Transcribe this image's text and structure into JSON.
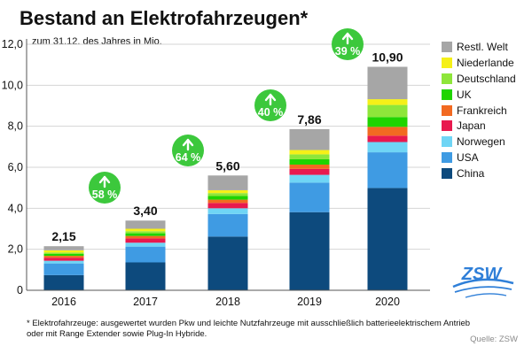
{
  "chart_data": {
    "type": "bar",
    "stacked": true,
    "title": "Bestand an Elektrofahrzeugen*",
    "subtitle": "zum 31.12. des Jahres in Mio.",
    "categories": [
      "2016",
      "2017",
      "2018",
      "2019",
      "2020"
    ],
    "ylim": [
      0,
      12
    ],
    "yticks": [
      "0",
      "2,0",
      "4,0",
      "6,0",
      "8,0",
      "10,0",
      "12,0"
    ],
    "grid": true,
    "legend_position": "right",
    "series": [
      {
        "name": "China",
        "color": "#0d4a7d",
        "values": [
          0.74,
          1.36,
          2.62,
          3.81,
          4.99
        ]
      },
      {
        "name": "USA",
        "color": "#3f9be3",
        "values": [
          0.57,
          0.77,
          1.1,
          1.44,
          1.74
        ]
      },
      {
        "name": "Norwegen",
        "color": "#6fd5f5",
        "values": [
          0.13,
          0.19,
          0.28,
          0.38,
          0.5
        ]
      },
      {
        "name": "Japan",
        "color": "#e8194e",
        "values": [
          0.15,
          0.21,
          0.26,
          0.29,
          0.31
        ]
      },
      {
        "name": "Frankreich",
        "color": "#f26a21",
        "values": [
          0.09,
          0.12,
          0.16,
          0.21,
          0.43
        ]
      },
      {
        "name": "UK",
        "color": "#1fd400",
        "values": [
          0.09,
          0.13,
          0.18,
          0.26,
          0.48
        ]
      },
      {
        "name": "Deutschland",
        "color": "#8ee63a",
        "values": [
          0.07,
          0.1,
          0.14,
          0.24,
          0.59
        ]
      },
      {
        "name": "Niederlande",
        "color": "#f5f018",
        "values": [
          0.11,
          0.12,
          0.14,
          0.21,
          0.28
        ]
      },
      {
        "name": "Restl. Welt",
        "color": "#a6a6a6",
        "values": [
          0.2,
          0.4,
          0.72,
          1.02,
          1.58
        ]
      }
    ],
    "totals_labels": [
      "2,15",
      "3,40",
      "5,60",
      "7,86",
      "10,90"
    ],
    "growth_labels": [
      "58 %",
      "64 %",
      "40 %",
      "39 %"
    ],
    "growth_color": "#3cc83c"
  },
  "footnote": "* Elektrofahrzeuge: ausgewertet wurden Pkw und leichte Nutzfahrzeuge mit ausschließlich batterieelektrischem Antrieb oder mit Range Extender sowie Plug-In Hybride.",
  "source": "Quelle: ZSW",
  "logo": {
    "text": "ZSW",
    "color": "#2f7fd8"
  }
}
